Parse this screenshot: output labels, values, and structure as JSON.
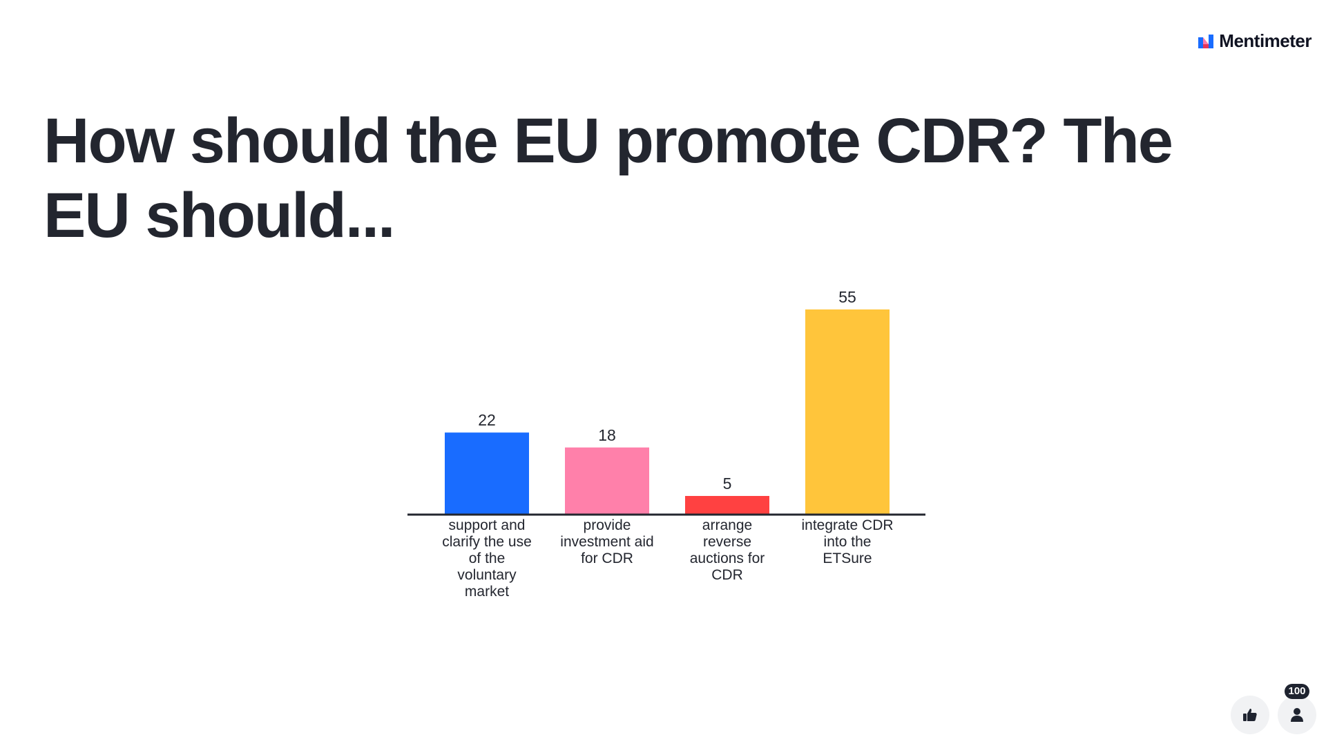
{
  "brand": {
    "name": "Mentimeter",
    "logo_icon": "mentimeter-logo-icon",
    "logo_colors": [
      "#ff7aa8",
      "#196cff",
      "#e8365a"
    ]
  },
  "question": {
    "title": "How should the EU promote CDR? The EU should..."
  },
  "chart_data": {
    "type": "bar",
    "categories": [
      "support and clarify the use of the voluntary market",
      "provide investment aid for CDR",
      "arrange reverse auctions for CDR",
      "integrate CDR into the ETSure"
    ],
    "values": [
      22,
      18,
      5,
      55
    ],
    "colors": [
      "#196cff",
      "#ff80aa",
      "#ff4141",
      "#ffc53b"
    ],
    "data_labels": [
      "22",
      "18",
      "5",
      "55"
    ],
    "ylim": [
      0,
      55
    ],
    "grid": false,
    "legend": "none"
  },
  "footer": {
    "like_icon": "thumbs-up-icon",
    "participants_icon": "person-icon",
    "participant_count": "100"
  }
}
